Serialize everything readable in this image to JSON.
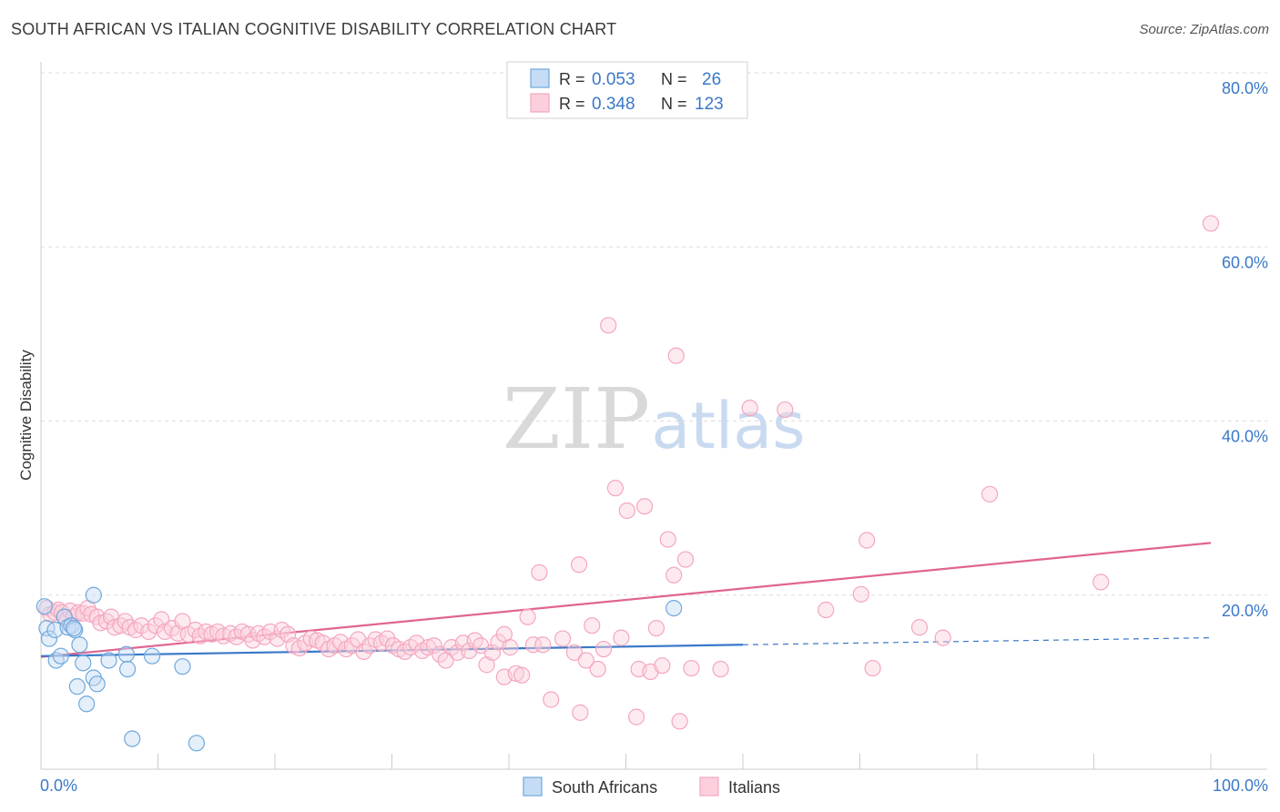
{
  "title": "SOUTH AFRICAN VS ITALIAN COGNITIVE DISABILITY CORRELATION CHART",
  "source": "Source: ZipAtlas.com",
  "watermark": {
    "zip": "ZIP",
    "atlas": "atlas"
  },
  "chart_data": {
    "type": "scatter",
    "xlabel": "",
    "ylabel": "Cognitive Disability",
    "xlim": [
      0,
      100
    ],
    "ylim": [
      0,
      80
    ],
    "x_tick_labels": [
      "0.0%",
      "100.0%"
    ],
    "y_tick_labels": [
      "20.0%",
      "40.0%",
      "60.0%",
      "80.0%"
    ],
    "y_ticks": [
      20,
      40,
      60,
      80
    ],
    "colors": {
      "south_africans": "#6fa8dc",
      "italians": "#f4a6c0",
      "sa_line": "#3a78c9",
      "it_line": "#e06592",
      "tick_text": "#3a78c9"
    },
    "legend": [
      {
        "r_label": "R =",
        "r_value": "0.053",
        "n_label": "N =",
        "n_value": "26"
      },
      {
        "r_label": "R =",
        "r_value": "0.348",
        "n_label": "N =",
        "n_value": "123"
      }
    ],
    "bottom_legend": [
      "South Africans",
      "Italians"
    ],
    "series": [
      {
        "name": "South Africans",
        "trend": {
          "x0": 0,
          "y0": 13.0,
          "x1": 60,
          "y1": 14.3,
          "dash_to": 100,
          "dash_y": 15.1
        },
        "points": [
          [
            0.3,
            18.7
          ],
          [
            0.5,
            16.2
          ],
          [
            0.7,
            15.0
          ],
          [
            1.2,
            16.0
          ],
          [
            1.3,
            12.5
          ],
          [
            1.7,
            13.0
          ],
          [
            2.0,
            17.5
          ],
          [
            2.3,
            16.3
          ],
          [
            2.6,
            16.5
          ],
          [
            2.9,
            16.0
          ],
          [
            3.3,
            14.3
          ],
          [
            3.6,
            12.2
          ],
          [
            3.1,
            9.5
          ],
          [
            3.9,
            7.5
          ],
          [
            4.5,
            10.5
          ],
          [
            4.8,
            9.8
          ],
          [
            4.5,
            20.0
          ],
          [
            5.8,
            12.5
          ],
          [
            7.3,
            13.2
          ],
          [
            7.4,
            11.5
          ],
          [
            7.8,
            3.5
          ],
          [
            9.5,
            13.0
          ],
          [
            12.1,
            11.8
          ],
          [
            13.3,
            3.0
          ],
          [
            54.1,
            18.5
          ],
          [
            2.8,
            16.2
          ]
        ]
      },
      {
        "name": "Italians",
        "trend": {
          "x0": 0,
          "y0": 12.9,
          "x1": 100,
          "y1": 26.0
        },
        "points": [
          [
            0.5,
            18.5
          ],
          [
            0.8,
            17.8
          ],
          [
            1.2,
            18.0
          ],
          [
            1.5,
            18.3
          ],
          [
            1.8,
            18.0
          ],
          [
            2.2,
            17.2
          ],
          [
            2.5,
            18.2
          ],
          [
            2.8,
            17.5
          ],
          [
            3.2,
            18.0
          ],
          [
            3.6,
            17.9
          ],
          [
            4.0,
            18.5
          ],
          [
            4.3,
            17.8
          ],
          [
            4.8,
            17.5
          ],
          [
            5.1,
            16.8
          ],
          [
            5.6,
            17.0
          ],
          [
            6.0,
            17.5
          ],
          [
            6.3,
            16.3
          ],
          [
            6.8,
            16.5
          ],
          [
            7.2,
            17.0
          ],
          [
            7.6,
            16.3
          ],
          [
            8.1,
            16.0
          ],
          [
            8.6,
            16.5
          ],
          [
            9.2,
            15.8
          ],
          [
            9.8,
            16.5
          ],
          [
            10.3,
            17.2
          ],
          [
            10.6,
            15.8
          ],
          [
            11.2,
            16.2
          ],
          [
            11.7,
            15.6
          ],
          [
            12.1,
            17.0
          ],
          [
            12.6,
            15.5
          ],
          [
            13.2,
            16.0
          ],
          [
            13.6,
            15.3
          ],
          [
            14.1,
            15.8
          ],
          [
            14.6,
            15.5
          ],
          [
            15.1,
            15.8
          ],
          [
            15.6,
            15.3
          ],
          [
            16.2,
            15.6
          ],
          [
            16.7,
            15.2
          ],
          [
            17.2,
            15.8
          ],
          [
            17.7,
            15.5
          ],
          [
            18.1,
            14.8
          ],
          [
            18.6,
            15.6
          ],
          [
            19.1,
            15.2
          ],
          [
            19.6,
            15.8
          ],
          [
            20.2,
            15.0
          ],
          [
            20.6,
            16.0
          ],
          [
            21.1,
            15.5
          ],
          [
            21.6,
            14.2
          ],
          [
            22.1,
            13.9
          ],
          [
            22.6,
            14.5
          ],
          [
            23.1,
            15.0
          ],
          [
            23.6,
            14.8
          ],
          [
            24.1,
            14.5
          ],
          [
            24.6,
            13.8
          ],
          [
            25.1,
            14.2
          ],
          [
            25.6,
            14.6
          ],
          [
            26.1,
            13.8
          ],
          [
            26.6,
            14.2
          ],
          [
            27.1,
            14.9
          ],
          [
            27.6,
            13.5
          ],
          [
            28.1,
            14.2
          ],
          [
            28.6,
            14.9
          ],
          [
            29.1,
            14.5
          ],
          [
            29.6,
            15.0
          ],
          [
            30.1,
            14.2
          ],
          [
            30.6,
            13.8
          ],
          [
            31.1,
            13.5
          ],
          [
            31.6,
            14.0
          ],
          [
            32.1,
            14.5
          ],
          [
            32.6,
            13.6
          ],
          [
            33.1,
            14.0
          ],
          [
            33.6,
            14.2
          ],
          [
            34.1,
            13.2
          ],
          [
            34.6,
            12.5
          ],
          [
            35.1,
            14.0
          ],
          [
            35.6,
            13.4
          ],
          [
            36.1,
            14.5
          ],
          [
            36.6,
            13.6
          ],
          [
            37.1,
            14.8
          ],
          [
            37.6,
            14.2
          ],
          [
            38.1,
            12.0
          ],
          [
            38.6,
            13.4
          ],
          [
            39.1,
            14.6
          ],
          [
            39.6,
            15.5
          ],
          [
            39.6,
            10.6
          ],
          [
            40.1,
            14.0
          ],
          [
            40.6,
            11.0
          ],
          [
            41.1,
            10.8
          ],
          [
            41.6,
            17.5
          ],
          [
            42.1,
            14.3
          ],
          [
            42.6,
            22.6
          ],
          [
            42.9,
            14.3
          ],
          [
            43.6,
            8.0
          ],
          [
            44.6,
            15.0
          ],
          [
            45.6,
            13.4
          ],
          [
            46.0,
            23.5
          ],
          [
            46.1,
            6.5
          ],
          [
            46.6,
            12.5
          ],
          [
            47.1,
            16.5
          ],
          [
            47.6,
            11.5
          ],
          [
            48.1,
            13.8
          ],
          [
            48.5,
            51.0
          ],
          [
            49.1,
            32.3
          ],
          [
            49.6,
            15.1
          ],
          [
            50.1,
            29.7
          ],
          [
            50.9,
            6.0
          ],
          [
            51.1,
            11.5
          ],
          [
            51.6,
            30.2
          ],
          [
            52.1,
            11.2
          ],
          [
            52.6,
            16.2
          ],
          [
            53.1,
            11.9
          ],
          [
            53.6,
            26.4
          ],
          [
            54.1,
            22.3
          ],
          [
            54.3,
            47.5
          ],
          [
            54.6,
            5.5
          ],
          [
            55.1,
            24.1
          ],
          [
            55.6,
            11.6
          ],
          [
            58.1,
            11.5
          ],
          [
            60.6,
            41.5
          ],
          [
            63.6,
            41.3
          ],
          [
            67.1,
            18.3
          ],
          [
            70.1,
            20.1
          ],
          [
            70.6,
            26.3
          ],
          [
            71.1,
            11.6
          ],
          [
            75.1,
            16.3
          ],
          [
            77.1,
            15.1
          ],
          [
            81.1,
            31.6
          ],
          [
            90.6,
            21.5
          ],
          [
            100.0,
            62.7
          ]
        ]
      }
    ]
  }
}
